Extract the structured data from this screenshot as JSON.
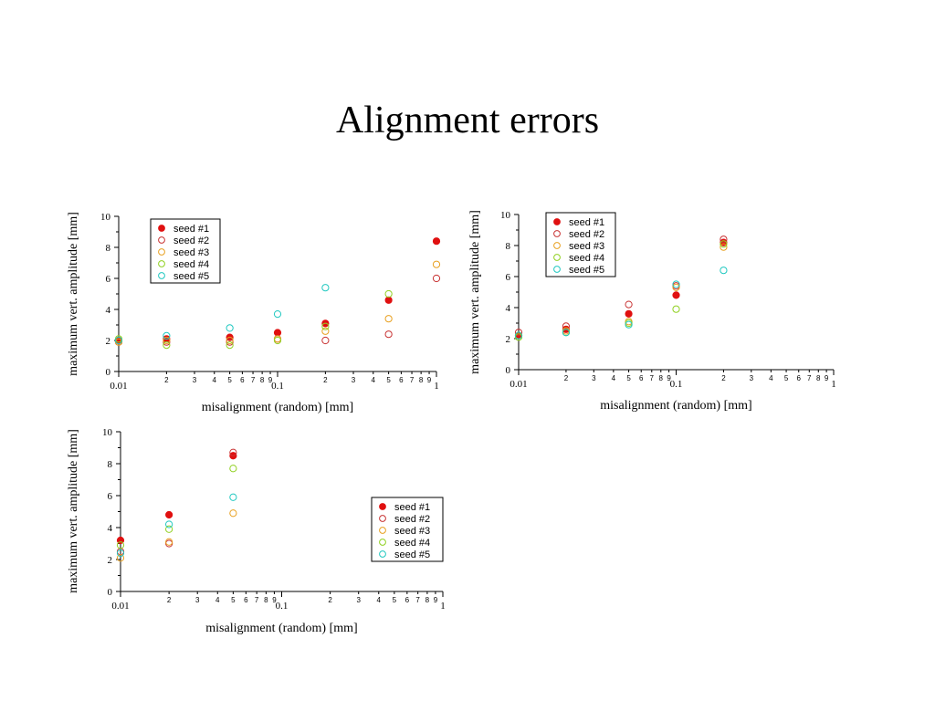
{
  "slide": {
    "title": "Alignment errors"
  },
  "chart_data": [
    {
      "type": "scatter",
      "xscale": "log",
      "xlim": [
        0.01,
        1
      ],
      "ylim": [
        0,
        10
      ],
      "yticks": [
        0,
        2,
        4,
        6,
        8,
        10
      ],
      "major_xticks": [
        {
          "v": 0.01,
          "label": "0.01"
        },
        {
          "v": 0.1,
          "label": "0.1"
        },
        {
          "v": 1,
          "label": "1"
        }
      ],
      "minor_labels": [
        "2",
        "3",
        "4",
        "5",
        "6",
        "7",
        "8",
        "9"
      ],
      "xlabel": "misalignment (random) [mm]",
      "ylabel": "maximum vert. amplitude [mm]",
      "legend_position": "top-left",
      "series": [
        {
          "name": "seed #1",
          "color": "#e01010",
          "filled": true,
          "x": [
            0.01,
            0.02,
            0.05,
            0.1,
            0.2,
            0.5,
            1
          ],
          "y": [
            2.0,
            2.1,
            2.2,
            2.5,
            3.1,
            4.6,
            8.4
          ]
        },
        {
          "name": "seed #2",
          "color": "#c83232",
          "filled": false,
          "x": [
            0.01,
            0.02,
            0.05,
            0.1,
            0.2,
            0.5,
            1
          ],
          "y": [
            1.9,
            1.9,
            1.9,
            2.1,
            2.0,
            2.4,
            6.0
          ]
        },
        {
          "name": "seed #3",
          "color": "#e8a020",
          "filled": false,
          "x": [
            0.01,
            0.02,
            0.05,
            0.1,
            0.2,
            0.5,
            1
          ],
          "y": [
            1.9,
            2.0,
            2.0,
            2.1,
            2.6,
            3.4,
            6.9
          ]
        },
        {
          "name": "seed #4",
          "color": "#90d020",
          "filled": false,
          "x": [
            0.01,
            0.02,
            0.05,
            0.1,
            0.2,
            0.5
          ],
          "y": [
            2.1,
            1.7,
            1.7,
            2.0,
            2.9,
            5.0
          ]
        },
        {
          "name": "seed #5",
          "color": "#20c8c0",
          "filled": false,
          "x": [
            0.01,
            0.02,
            0.05,
            0.1,
            0.2
          ],
          "y": [
            2.0,
            2.3,
            2.8,
            3.7,
            5.4
          ]
        }
      ]
    },
    {
      "type": "scatter",
      "xscale": "log",
      "xlim": [
        0.01,
        1
      ],
      "ylim": [
        0,
        10
      ],
      "yticks": [
        0,
        2,
        4,
        6,
        8,
        10
      ],
      "major_xticks": [
        {
          "v": 0.01,
          "label": "0.01"
        },
        {
          "v": 0.1,
          "label": "0.1"
        },
        {
          "v": 1,
          "label": "1"
        }
      ],
      "minor_labels": [
        "2",
        "3",
        "4",
        "5",
        "6",
        "7",
        "8",
        "9"
      ],
      "xlabel": "misalignment (random) [mm]",
      "ylabel": "maximum vert. amplitude [mm]",
      "legend_position": "top-left",
      "series": [
        {
          "name": "seed #1",
          "color": "#e01010",
          "filled": true,
          "x": [
            0.01,
            0.02,
            0.05,
            0.1,
            0.2
          ],
          "y": [
            2.2,
            2.6,
            3.6,
            4.8,
            8.2
          ]
        },
        {
          "name": "seed #2",
          "color": "#c83232",
          "filled": false,
          "x": [
            0.01,
            0.02,
            0.05,
            0.1,
            0.2
          ],
          "y": [
            2.4,
            2.8,
            4.2,
            5.4,
            8.4
          ]
        },
        {
          "name": "seed #3",
          "color": "#e8a020",
          "filled": false,
          "x": [
            0.01,
            0.02,
            0.05,
            0.1,
            0.2
          ],
          "y": [
            2.2,
            2.5,
            3.1,
            5.3,
            7.9
          ]
        },
        {
          "name": "seed #4",
          "color": "#90d020",
          "filled": false,
          "x": [
            0.01,
            0.02,
            0.05,
            0.1,
            0.2
          ],
          "y": [
            2.1,
            2.4,
            3.0,
            3.9,
            8.1
          ]
        },
        {
          "name": "seed #5",
          "color": "#20c8c0",
          "filled": false,
          "x": [
            0.01,
            0.02,
            0.05,
            0.1,
            0.2
          ],
          "y": [
            2.2,
            2.4,
            2.9,
            5.5,
            6.4
          ]
        }
      ]
    },
    {
      "type": "scatter",
      "xscale": "log",
      "xlim": [
        0.01,
        1
      ],
      "ylim": [
        0,
        10
      ],
      "yticks": [
        0,
        2,
        4,
        6,
        8,
        10
      ],
      "major_xticks": [
        {
          "v": 0.01,
          "label": "0.01"
        },
        {
          "v": 0.1,
          "label": "0.1"
        },
        {
          "v": 1,
          "label": "1"
        }
      ],
      "minor_labels": [
        "2",
        "3",
        "4",
        "5",
        "6",
        "7",
        "8",
        "9"
      ],
      "xlabel": "misalignment (random) [mm]",
      "ylabel": "maximum vert. amplitude [mm]",
      "legend_position": "right",
      "series": [
        {
          "name": "seed #1",
          "color": "#e01010",
          "filled": true,
          "x": [
            0.01,
            0.02,
            0.05
          ],
          "y": [
            3.2,
            4.8,
            8.5
          ]
        },
        {
          "name": "seed #2",
          "color": "#c83232",
          "filled": false,
          "x": [
            0.01,
            0.02,
            0.05
          ],
          "y": [
            2.5,
            3.0,
            8.7
          ]
        },
        {
          "name": "seed #3",
          "color": "#e8a020",
          "filled": false,
          "x": [
            0.01,
            0.02,
            0.05
          ],
          "y": [
            2.1,
            3.1,
            4.9
          ]
        },
        {
          "name": "seed #4",
          "color": "#90d020",
          "filled": false,
          "x": [
            0.01,
            0.02,
            0.05
          ],
          "y": [
            2.9,
            3.9,
            7.7
          ]
        },
        {
          "name": "seed #5",
          "color": "#20c8c0",
          "filled": false,
          "x": [
            0.01,
            0.02,
            0.05
          ],
          "y": [
            2.4,
            4.2,
            5.9
          ]
        }
      ]
    }
  ]
}
